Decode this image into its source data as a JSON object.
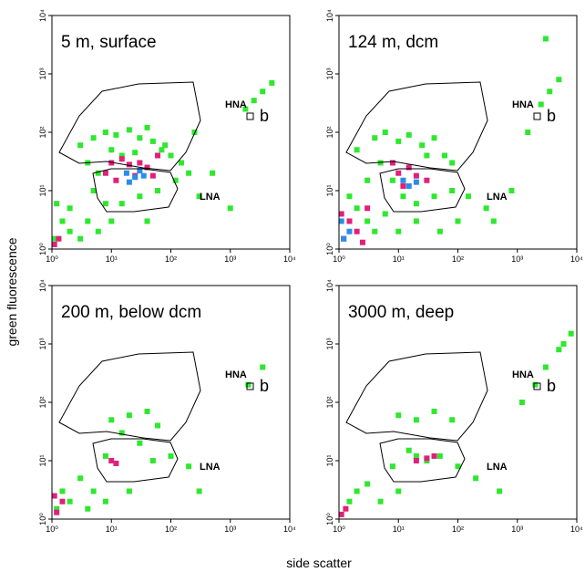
{
  "xlabel": "side scatter",
  "ylabel": "green fluorescence",
  "chart_data": [
    {
      "type": "scatter",
      "title": "5 m, surface",
      "xscale": "log",
      "yscale": "log",
      "xlim": [
        1,
        10000
      ],
      "ylim": [
        1,
        10000
      ],
      "xticks": [
        {
          "value": 1,
          "label": "10⁰"
        },
        {
          "value": 10,
          "label": "10¹"
        },
        {
          "value": 100,
          "label": "10²"
        },
        {
          "value": 1000,
          "label": "10³"
        },
        {
          "value": 10000,
          "label": "10⁴"
        }
      ],
      "yticks": [
        {
          "value": 1,
          "label": "10⁰"
        },
        {
          "value": 10,
          "label": "10¹"
        },
        {
          "value": 100,
          "label": "10²"
        },
        {
          "value": 1000,
          "label": "10³"
        },
        {
          "value": 10000,
          "label": "10⁴"
        }
      ],
      "annotations": [
        "HNA",
        "LNA",
        "b"
      ],
      "series": [
        {
          "color": "#2ee82e",
          "x": [
            3,
            5,
            8,
            12,
            20,
            30,
            50,
            80,
            100,
            150,
            4,
            6,
            5,
            8,
            15,
            30,
            60,
            120,
            200,
            300,
            2,
            1.5,
            2,
            3,
            4,
            1.2,
            1.1,
            6,
            10,
            40,
            70,
            25,
            15,
            10,
            40,
            250,
            500,
            1000,
            2500,
            3500,
            5000,
            1800
          ],
          "values": [
            60,
            80,
            100,
            90,
            110,
            80,
            70,
            60,
            40,
            30,
            30,
            20,
            10,
            6,
            6,
            8,
            10,
            15,
            20,
            8,
            5,
            3,
            2,
            1.5,
            3,
            6,
            1.5,
            2,
            3,
            3,
            50,
            45,
            40,
            50,
            120,
            100,
            20,
            5,
            350,
            500,
            700,
            250
          ]
        },
        {
          "color": "#e0207a",
          "x": [
            10,
            15,
            20,
            30,
            40,
            12,
            25,
            50,
            8,
            60,
            1.1,
            1.3
          ],
          "values": [
            30,
            35,
            28,
            30,
            25,
            15,
            18,
            18,
            20,
            40,
            1.2,
            1.5
          ]
        },
        {
          "color": "#2a8de8",
          "x": [
            18,
            25,
            30,
            20,
            35
          ],
          "values": [
            20,
            17,
            22,
            14,
            18
          ]
        }
      ]
    },
    {
      "type": "scatter",
      "title": "124 m, dcm",
      "xscale": "log",
      "yscale": "log",
      "xlim": [
        1,
        10000
      ],
      "ylim": [
        1,
        10000
      ],
      "xticks": [
        {
          "value": 1,
          "label": "10⁰"
        },
        {
          "value": 10,
          "label": "10¹"
        },
        {
          "value": 100,
          "label": "10²"
        },
        {
          "value": 1000,
          "label": "10³"
        },
        {
          "value": 10000,
          "label": "10⁴"
        }
      ],
      "yticks": [
        {
          "value": 1,
          "label": "10⁰"
        },
        {
          "value": 10,
          "label": "10¹"
        },
        {
          "value": 100,
          "label": "10²"
        },
        {
          "value": 1000,
          "label": "10³"
        },
        {
          "value": 10000,
          "label": "10⁴"
        }
      ],
      "annotations": [
        "HNA",
        "LNA",
        "b"
      ],
      "series": [
        {
          "color": "#2ee82e",
          "x": [
            2,
            4,
            6,
            10,
            15,
            25,
            40,
            60,
            80,
            5,
            8,
            12,
            20,
            40,
            80,
            150,
            300,
            2,
            3,
            1.5,
            4,
            6,
            10,
            20,
            50,
            100,
            3,
            30,
            400,
            800,
            1500,
            2500,
            3500,
            5000,
            3000
          ],
          "values": [
            50,
            80,
            100,
            70,
            90,
            60,
            80,
            40,
            30,
            30,
            15,
            8,
            6,
            8,
            10,
            8,
            5,
            5,
            3,
            8,
            2,
            4,
            2,
            3,
            2,
            3,
            15,
            40,
            3,
            10,
            100,
            300,
            500,
            800,
            4000
          ]
        },
        {
          "color": "#e0207a",
          "x": [
            8,
            10,
            15,
            20,
            30,
            12,
            1.2,
            1.5,
            2,
            1.1,
            2.5,
            3
          ],
          "values": [
            30,
            20,
            25,
            18,
            15,
            12,
            1.5,
            3,
            2,
            4,
            1.3,
            5
          ]
        },
        {
          "color": "#2a8de8",
          "x": [
            12,
            15,
            20,
            1.2,
            1.5,
            1.1
          ],
          "values": [
            15,
            12,
            14,
            1.5,
            2,
            3
          ]
        }
      ]
    },
    {
      "type": "scatter",
      "title": "200 m, below dcm",
      "xscale": "log",
      "yscale": "log",
      "xlim": [
        1,
        10000
      ],
      "ylim": [
        1,
        10000
      ],
      "xticks": [
        {
          "value": 1,
          "label": "10⁰"
        },
        {
          "value": 10,
          "label": "10¹"
        },
        {
          "value": 100,
          "label": "10²"
        },
        {
          "value": 1000,
          "label": "10³"
        },
        {
          "value": 10000,
          "label": "10⁴"
        }
      ],
      "yticks": [
        {
          "value": 1,
          "label": "10⁰"
        },
        {
          "value": 10,
          "label": "10¹"
        },
        {
          "value": 100,
          "label": "10²"
        },
        {
          "value": 1000,
          "label": "10³"
        },
        {
          "value": 10000,
          "label": "10⁴"
        }
      ],
      "annotations": [
        "HNA",
        "LNA",
        "b"
      ],
      "series": [
        {
          "color": "#2ee82e",
          "x": [
            10,
            20,
            40,
            60,
            15,
            30,
            8,
            50,
            100,
            200,
            1.5,
            2,
            3,
            1.2,
            5,
            4,
            8,
            20,
            300,
            3500,
            2000
          ],
          "values": [
            50,
            60,
            70,
            40,
            30,
            20,
            12,
            10,
            12,
            8,
            3,
            2,
            5,
            1.5,
            3,
            1.5,
            2,
            3,
            3,
            400,
            200
          ]
        },
        {
          "color": "#e0207a",
          "x": [
            10,
            12,
            1.2,
            1.5,
            1.1
          ],
          "values": [
            10,
            9,
            1.3,
            2,
            2.5
          ]
        }
      ]
    },
    {
      "type": "scatter",
      "title": "3000 m, deep",
      "xscale": "log",
      "yscale": "log",
      "xlim": [
        1,
        10000
      ],
      "ylim": [
        1,
        10000
      ],
      "xticks": [
        {
          "value": 1,
          "label": "10⁰"
        },
        {
          "value": 10,
          "label": "10¹"
        },
        {
          "value": 100,
          "label": "10²"
        },
        {
          "value": 1000,
          "label": "10³"
        },
        {
          "value": 10000,
          "label": "10⁴"
        }
      ],
      "yticks": [
        {
          "value": 1,
          "label": "10⁰"
        },
        {
          "value": 10,
          "label": "10¹"
        },
        {
          "value": 100,
          "label": "10²"
        },
        {
          "value": 1000,
          "label": "10³"
        },
        {
          "value": 10000,
          "label": "10⁴"
        }
      ],
      "annotations": [
        "HNA",
        "LNA",
        "b"
      ],
      "series": [
        {
          "color": "#2ee82e",
          "x": [
            10,
            20,
            40,
            80,
            15,
            20,
            30,
            50,
            8,
            100,
            3,
            1.5,
            2,
            5,
            10,
            200,
            500,
            6000,
            5000,
            8000,
            3000,
            2000,
            1200
          ],
          "values": [
            60,
            50,
            70,
            50,
            15,
            12,
            10,
            12,
            8,
            8,
            4,
            2,
            3,
            2,
            3,
            5,
            3,
            1000,
            800,
            1500,
            400,
            200,
            100
          ]
        },
        {
          "color": "#e0207a",
          "x": [
            20,
            30,
            40,
            1.1,
            1.3
          ],
          "values": [
            10,
            11,
            12,
            1.2,
            1.5
          ]
        }
      ]
    }
  ]
}
